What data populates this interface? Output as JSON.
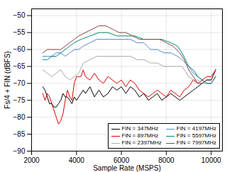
{
  "chart_data": {
    "type": "line",
    "xlabel": "Sample Rate (MSPS)",
    "ylabel": "Fs/4 + FIN (dBFS)",
    "xlim": [
      2000,
      10500
    ],
    "ylim": [
      -90,
      -48
    ],
    "xticks": [
      2000,
      4000,
      6000,
      8000,
      10000
    ],
    "yticks": [
      -90,
      -85,
      -80,
      -75,
      -70,
      -65,
      -60,
      -55,
      -50
    ],
    "grid": true,
    "legend": "lower right",
    "series": [
      {
        "name": "FIN = 347MHz",
        "color": "#000000",
        "x": [
          2500,
          2600,
          2700,
          2800,
          2900,
          3000,
          3100,
          3200,
          3300,
          3400,
          3500,
          3600,
          3700,
          3800,
          3900,
          4000,
          4100,
          4200,
          4300,
          4400,
          4600,
          4800,
          5000,
          5200,
          5400,
          5600,
          5800,
          6000,
          6200,
          6400,
          6600,
          6800,
          7000,
          7200,
          7400,
          7600,
          7800,
          8000,
          8200,
          8400,
          8600,
          8800,
          9000,
          9200,
          9400,
          9600,
          9800,
          10000,
          10200
        ],
        "values": [
          -71,
          -72,
          -74,
          -76,
          -76,
          -77,
          -77,
          -76,
          -75,
          -73,
          -74,
          -74,
          -75,
          -76,
          -74,
          -75,
          -74,
          -73,
          -72,
          -73,
          -71,
          -74,
          -72,
          -74,
          -73,
          -71,
          -72,
          -71,
          -73,
          -71,
          -72,
          -74,
          -73,
          -75,
          -74,
          -73,
          -75,
          -74,
          -73,
          -74,
          -75,
          -74,
          -73,
          -72,
          -71,
          -70,
          -69,
          -69,
          -66
        ]
      },
      {
        "name": "FIN = 897MHz",
        "color": "#dd0000",
        "x": [
          2500,
          2600,
          2700,
          2800,
          2900,
          3000,
          3100,
          3200,
          3300,
          3400,
          3500,
          3600,
          3700,
          3800,
          3900,
          4000,
          4100,
          4200,
          4300,
          4400,
          4600,
          4800,
          5000,
          5200,
          5400,
          5600,
          5800,
          6000,
          6200,
          6400,
          6600,
          6800,
          7000,
          7200,
          7400,
          7600,
          7800,
          8000,
          8200,
          8400,
          8600,
          8800,
          9000,
          9200,
          9400,
          9600,
          9800,
          10000,
          10200
        ],
        "values": [
          -73,
          -75,
          -73,
          -74,
          -76,
          -78,
          -80,
          -82,
          -81,
          -79,
          -75,
          -72,
          -74,
          -75,
          -70,
          -68,
          -68,
          -68,
          -66,
          -68,
          -69,
          -67,
          -69,
          -70,
          -68,
          -69,
          -70,
          -69,
          -71,
          -69,
          -70,
          -72,
          -73,
          -74,
          -73,
          -72,
          -73,
          -74,
          -72,
          -73,
          -74,
          -72,
          -71,
          -69,
          -70,
          -69,
          -68,
          -68,
          -66
        ]
      },
      {
        "name": "FIN = 2397MHz",
        "color": "#aaaaaa",
        "x": [
          2500,
          2700,
          2900,
          3100,
          3300,
          3500,
          3700,
          3900,
          4100,
          4300,
          4600,
          4900,
          5200,
          5500,
          5800,
          6100,
          6400,
          6700,
          7000,
          7300,
          7600,
          7900,
          8200,
          8500,
          8700,
          9000,
          9200,
          9400,
          9600,
          9800,
          10000,
          10200
        ],
        "values": [
          -66,
          -67,
          -68,
          -67,
          -66,
          -68,
          -69,
          -68,
          -67,
          -64,
          -63,
          -62,
          -62,
          -62,
          -62,
          -62,
          -62,
          -63,
          -63,
          -64,
          -64,
          -65,
          -65,
          -65,
          -65,
          -68,
          -69,
          -69,
          -70,
          -70,
          -70,
          -68
        ]
      },
      {
        "name": "FIN = 4197MHz",
        "color": "#5588cc",
        "x": [
          2500,
          2700,
          2900,
          3100,
          3300,
          3500,
          3700,
          3900,
          4100,
          4300,
          4600,
          4900,
          5200,
          5500,
          5800,
          6100,
          6400,
          6700,
          7000,
          7300,
          7600,
          7900,
          8200,
          8500,
          8700,
          9000,
          9200,
          9400,
          9600,
          9800,
          10000,
          10200
        ],
        "values": [
          -62,
          -62,
          -62,
          -61,
          -61,
          -62,
          -61,
          -60,
          -60,
          -59,
          -58,
          -57,
          -57,
          -57,
          -57,
          -57,
          -57,
          -58,
          -58,
          -60,
          -60,
          -61,
          -61,
          -62,
          -63,
          -65,
          -67,
          -68,
          -69,
          -70,
          -70,
          -68
        ]
      },
      {
        "name": "FIN = 5597MHz",
        "color": "#008877",
        "x": [
          2500,
          2700,
          2900,
          3100,
          3300,
          3500,
          3700,
          3900,
          4200,
          4600,
          5000,
          5400,
          5800,
          6200,
          6600,
          7000,
          7400,
          7800,
          8200,
          8500,
          8700,
          9000,
          9200,
          9400,
          9600,
          9800,
          10000,
          10200
        ],
        "values": [
          -63,
          -63,
          -62,
          -62,
          -61,
          -60,
          -59,
          -58,
          -57,
          -56,
          -55,
          -55,
          -56,
          -56,
          -56,
          -57,
          -57,
          -57,
          -58,
          -59,
          -61,
          -65,
          -66,
          -68,
          -69,
          -70,
          -70,
          -68
        ]
      },
      {
        "name": "FIN = 7997MHz",
        "color": "#884444",
        "x": [
          2500,
          2700,
          2900,
          3100,
          3300,
          3500,
          3700,
          3900,
          4100,
          4400,
          4700,
          5000,
          5300,
          5600,
          5900,
          6200,
          6500,
          6800,
          7100,
          7400,
          7700,
          8000,
          8300,
          8600,
          8800,
          9000,
          9200,
          9400,
          9600,
          9800,
          10000,
          10200
        ],
        "values": [
          -61,
          -60,
          -60,
          -60,
          -60,
          -59,
          -58,
          -57,
          -56,
          -55,
          -54,
          -53,
          -53,
          -54,
          -55,
          -55,
          -56,
          -57,
          -57,
          -57,
          -57,
          -58,
          -59,
          -61,
          -63,
          -66,
          -68,
          -70,
          -70,
          -69,
          -69,
          -66
        ]
      }
    ]
  }
}
